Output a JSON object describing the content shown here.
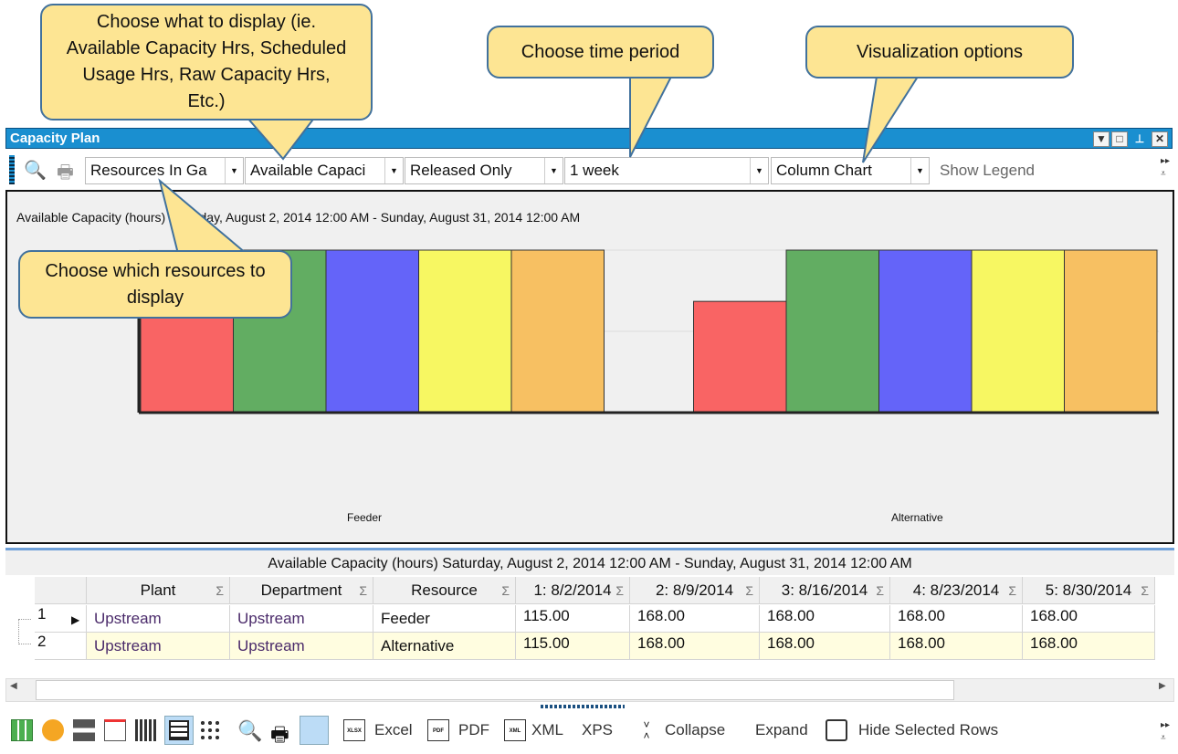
{
  "window": {
    "title": "Capacity Plan",
    "buttons": [
      "dropdown",
      "restore",
      "pin",
      "close"
    ]
  },
  "toolbar": {
    "resources": "Resources In Ga",
    "measure": "Available Capaci",
    "filter": "Released Only",
    "period": "1 week",
    "chart_type": "Column Chart",
    "show_legend": "Show Legend"
  },
  "chart_data": {
    "type": "bar",
    "title": "Available Capacity (hours) Saturday, August 2, 2014  12:00 AM - Sunday, August 31, 2014  12:00 AM",
    "categories": [
      "Feeder",
      "Alternative"
    ],
    "series": [
      {
        "values": [
          115,
          115
        ],
        "color": "#f96464"
      },
      {
        "values": [
          168,
          168
        ],
        "color": "#62ad62"
      },
      {
        "values": [
          168,
          168
        ],
        "color": "#6464f9"
      },
      {
        "values": [
          168,
          168
        ],
        "color": "#f7f762"
      },
      {
        "values": [
          168,
          168
        ],
        "color": "#f7c062"
      }
    ],
    "ylim": [
      0,
      168
    ],
    "grid": true,
    "legend": "none"
  },
  "grid": {
    "caption": "Available Capacity (hours) Saturday, August 2, 2014  12:00 AM - Sunday, August 31, 2014  12:00 AM",
    "columns": [
      "Plant",
      "Department",
      "Resource",
      "1: 8/2/2014",
      "2: 8/9/2014",
      "3: 8/16/2014",
      "4: 8/23/2014",
      "5: 8/30/2014"
    ],
    "rows": [
      {
        "num": "1",
        "cells": [
          "Upstream",
          "Upstream",
          "Feeder",
          "115.00",
          "168.00",
          "168.00",
          "168.00",
          "168.00"
        ]
      },
      {
        "num": "2",
        "cells": [
          "Upstream",
          "Upstream",
          "Alternative",
          "115.00",
          "168.00",
          "168.00",
          "168.00",
          "168.00"
        ]
      }
    ]
  },
  "bottom_toolbar": {
    "excel": "Excel",
    "pdf": "PDF",
    "xml": "XML",
    "xps": "XPS",
    "collapse": "Collapse",
    "expand": "Expand",
    "hide_rows": "Hide Selected Rows",
    "xlsx_tag": "XLSX",
    "pdf_tag": "PDF",
    "xml_tag": "XML"
  },
  "callouts": {
    "display": "Choose what to display (ie. Available Capacity Hrs, Scheduled Usage Hrs, Raw Capacity Hrs, Etc.)",
    "period": "Choose time period",
    "visual": "Visualization options",
    "resources": "Choose which resources to display"
  }
}
